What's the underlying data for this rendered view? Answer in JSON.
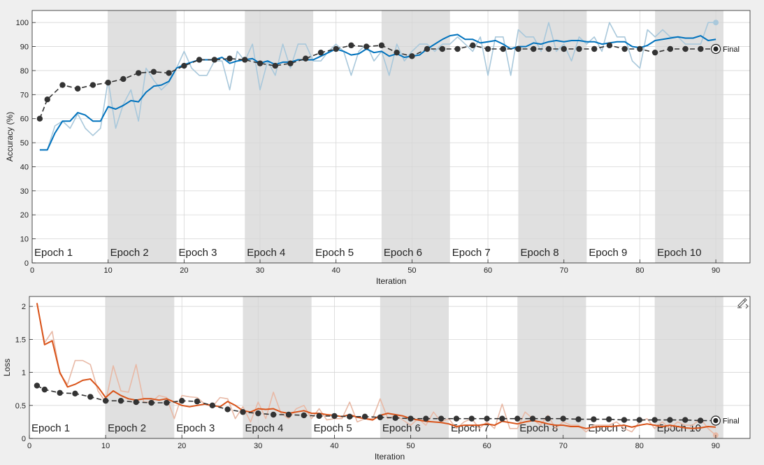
{
  "chart_data": [
    {
      "type": "line",
      "panel": "accuracy",
      "xlabel": "Iteration",
      "ylabel": "Accuracy (%)",
      "xlim": [
        0,
        94.5
      ],
      "ylim": [
        0,
        105
      ],
      "xticks": [
        0,
        10,
        20,
        30,
        40,
        50,
        60,
        70,
        80,
        90
      ],
      "yticks": [
        0,
        10,
        20,
        30,
        40,
        50,
        60,
        70,
        80,
        90,
        100
      ],
      "grid": true,
      "epoch_labels": [
        "Epoch 1",
        "Epoch 2",
        "Epoch 3",
        "Epoch 4",
        "Epoch 5",
        "Epoch 6",
        "Epoch 7",
        "Epoch 8",
        "Epoch 9",
        "Epoch 10"
      ],
      "epoch_boundaries": [
        0,
        10,
        19,
        28,
        37,
        46,
        55,
        64,
        73,
        82,
        91
      ],
      "series": [
        {
          "role": "raw",
          "color": "#a9c8db",
          "x": [
            1,
            2,
            3,
            4,
            5,
            6,
            7,
            8,
            9,
            10,
            11,
            12,
            13,
            14,
            15,
            16,
            17,
            18,
            19,
            20,
            21,
            22,
            23,
            24,
            25,
            26,
            27,
            28,
            29,
            30,
            31,
            32,
            33,
            34,
            35,
            36,
            37,
            38,
            39,
            40,
            41,
            42,
            43,
            44,
            45,
            46,
            47,
            48,
            49,
            50,
            51,
            52,
            53,
            54,
            55,
            56,
            57,
            58,
            59,
            60,
            61,
            62,
            63,
            64,
            65,
            66,
            67,
            68,
            69,
            70,
            71,
            72,
            73,
            74,
            75,
            76,
            77,
            78,
            79,
            80,
            81,
            82,
            83,
            84,
            85,
            86,
            87,
            88,
            89,
            90
          ],
          "y": [
            47,
            47,
            57,
            59,
            56,
            62,
            56,
            53,
            56,
            76,
            56,
            66,
            72,
            59,
            81,
            76,
            72,
            75,
            81,
            88,
            81,
            78,
            78,
            84,
            84,
            72,
            88,
            84,
            91,
            72,
            84,
            78,
            91,
            81,
            91,
            91,
            84,
            84,
            88,
            91,
            88,
            78,
            88,
            91,
            84,
            88,
            78,
            91,
            84,
            88,
            91,
            91,
            88,
            91,
            91,
            94,
            91,
            88,
            94,
            78,
            94,
            94,
            78,
            97,
            94,
            94,
            88,
            100,
            88,
            91,
            84,
            94,
            91,
            94,
            88,
            100,
            94,
            94,
            84,
            81,
            97,
            94,
            97,
            94,
            94,
            91,
            91,
            91,
            100,
            100
          ]
        },
        {
          "role": "smoothed",
          "color": "#0072bd",
          "x": [
            1,
            2,
            3,
            4,
            5,
            6,
            7,
            8,
            9,
            10,
            11,
            12,
            13,
            14,
            15,
            16,
            17,
            18,
            19,
            20,
            21,
            22,
            23,
            24,
            25,
            26,
            27,
            28,
            29,
            30,
            31,
            32,
            33,
            34,
            35,
            36,
            37,
            38,
            39,
            40,
            41,
            42,
            43,
            44,
            45,
            46,
            47,
            48,
            49,
            50,
            51,
            52,
            53,
            54,
            55,
            56,
            57,
            58,
            59,
            60,
            61,
            62,
            63,
            64,
            65,
            66,
            67,
            68,
            69,
            70,
            71,
            72,
            73,
            74,
            75,
            76,
            77,
            78,
            79,
            80,
            81,
            82,
            83,
            84,
            85,
            86,
            87,
            88,
            89,
            90
          ],
          "y": [
            47,
            47,
            54,
            59,
            59,
            62.5,
            61.5,
            59,
            59,
            65,
            64,
            65.5,
            67.5,
            67,
            71,
            73.5,
            74,
            75.5,
            81,
            82.5,
            83.5,
            84.5,
            84.5,
            84.5,
            85.5,
            83,
            84,
            84.5,
            85,
            83,
            84,
            82.5,
            83.5,
            83.5,
            84.5,
            84.5,
            84.5,
            86,
            87.5,
            89,
            88,
            86.5,
            87,
            89,
            87.5,
            88,
            86,
            87,
            85.5,
            86,
            86.5,
            89,
            91,
            93,
            94.5,
            95,
            93,
            93,
            91.5,
            92,
            92.5,
            91,
            89,
            90,
            90,
            91.5,
            91,
            92,
            92.5,
            92,
            92.5,
            92.5,
            92,
            92,
            91,
            91.5,
            92,
            92,
            90,
            89.5,
            90.5,
            92.5,
            93,
            93.5,
            94,
            93.5,
            93.5,
            94.5,
            92.5,
            93
          ]
        },
        {
          "role": "validation",
          "color": "#333333",
          "x": [
            1,
            2,
            4,
            6,
            8,
            10,
            12,
            14,
            16,
            18,
            20,
            22,
            24,
            26,
            28,
            30,
            32,
            34,
            36,
            38,
            40,
            42,
            44,
            46,
            48,
            50,
            52,
            54,
            56,
            58,
            60,
            62,
            64,
            66,
            68,
            70,
            72,
            74,
            76,
            78,
            80,
            82,
            84,
            86,
            88,
            90
          ],
          "y": [
            60,
            68,
            74,
            72.5,
            74,
            75,
            76.5,
            79,
            79.5,
            79,
            82,
            84.5,
            84.5,
            85,
            84.5,
            83,
            82,
            83,
            85,
            87.5,
            89,
            90.5,
            90,
            90.5,
            87.5,
            86,
            89,
            89,
            89,
            90.5,
            89,
            89,
            89,
            89,
            89,
            89,
            89,
            89,
            90.5,
            89,
            89,
            87.5,
            89,
            89,
            89,
            89
          ]
        }
      ],
      "final_label": "Final",
      "final_value": 89,
      "final_raw_value": 100
    },
    {
      "type": "line",
      "panel": "loss",
      "xlabel": "Iteration",
      "ylabel": "Loss",
      "xlim": [
        0,
        94.5
      ],
      "ylim": [
        0,
        2.15
      ],
      "xticks": [
        0,
        10,
        20,
        30,
        40,
        50,
        60,
        70,
        80,
        90
      ],
      "yticks": [
        0,
        0.5,
        1,
        1.5,
        2
      ],
      "ytick_labels": [
        "0",
        "0.5",
        "1",
        "1.5",
        "2"
      ],
      "grid": true,
      "epoch_labels": [
        "Epoch 1",
        "Epoch 2",
        "Epoch 3",
        "Epoch 4",
        "Epoch 5",
        "Epoch 6",
        "Epoch 7",
        "Epoch 8",
        "Epoch 9",
        "Epoch 10"
      ],
      "epoch_boundaries": [
        0,
        10,
        19,
        28,
        37,
        46,
        55,
        64,
        73,
        82,
        91
      ],
      "series": [
        {
          "role": "raw",
          "color": "#e8b9a6",
          "x": [
            1,
            2,
            3,
            4,
            5,
            6,
            7,
            8,
            9,
            10,
            11,
            12,
            13,
            14,
            15,
            16,
            17,
            18,
            19,
            20,
            21,
            22,
            23,
            24,
            25,
            26,
            27,
            28,
            29,
            30,
            31,
            32,
            33,
            34,
            35,
            36,
            37,
            38,
            39,
            40,
            41,
            42,
            43,
            44,
            45,
            46,
            47,
            48,
            49,
            50,
            51,
            52,
            53,
            54,
            55,
            56,
            57,
            58,
            59,
            60,
            61,
            62,
            63,
            64,
            65,
            66,
            67,
            68,
            69,
            70,
            71,
            72,
            73,
            74,
            75,
            76,
            77,
            78,
            79,
            80,
            81,
            82,
            83,
            84,
            85,
            86,
            87,
            88,
            89,
            90
          ],
          "y": [
            2.05,
            1.45,
            1.62,
            0.98,
            0.82,
            1.18,
            1.18,
            1.12,
            0.72,
            0.55,
            1.1,
            0.72,
            0.7,
            1.12,
            0.55,
            0.55,
            0.65,
            0.62,
            0.3,
            0.65,
            0.63,
            0.62,
            0.52,
            0.48,
            0.62,
            0.6,
            0.3,
            0.48,
            0.25,
            0.55,
            0.3,
            0.7,
            0.38,
            0.3,
            0.45,
            0.5,
            0.3,
            0.45,
            0.28,
            0.3,
            0.3,
            0.55,
            0.25,
            0.3,
            0.3,
            0.6,
            0.3,
            0.35,
            0.28,
            0.2,
            0.3,
            0.2,
            0.4,
            0.25,
            0.3,
            0.15,
            0.25,
            0.3,
            0.15,
            0.25,
            0.15,
            0.52,
            0.15,
            0.15,
            0.4,
            0.3,
            0.2,
            0.35,
            0.15,
            0.25,
            0.2,
            0.2,
            0.1,
            0.2,
            0.2,
            0.2,
            0.25,
            0.15,
            0.1,
            0.25,
            0.3,
            0.15,
            0.25,
            0.15,
            0.25,
            0.2,
            0.2,
            0.3,
            0.15,
            0.05
          ]
        },
        {
          "role": "smoothed",
          "color": "#d95319",
          "x": [
            1,
            2,
            3,
            4,
            5,
            6,
            7,
            8,
            9,
            10,
            11,
            12,
            13,
            14,
            15,
            16,
            17,
            18,
            19,
            20,
            21,
            22,
            23,
            24,
            25,
            26,
            27,
            28,
            29,
            30,
            31,
            32,
            33,
            34,
            35,
            36,
            37,
            38,
            39,
            40,
            41,
            42,
            43,
            44,
            45,
            46,
            47,
            48,
            49,
            50,
            51,
            52,
            53,
            54,
            55,
            56,
            57,
            58,
            59,
            60,
            61,
            62,
            63,
            64,
            65,
            66,
            67,
            68,
            69,
            70,
            71,
            72,
            73,
            74,
            75,
            76,
            77,
            78,
            79,
            80,
            81,
            82,
            83,
            84,
            85,
            86,
            87,
            88,
            89,
            90
          ],
          "y": [
            2.05,
            1.42,
            1.48,
            1.0,
            0.78,
            0.82,
            0.88,
            0.9,
            0.78,
            0.62,
            0.72,
            0.65,
            0.6,
            0.58,
            0.6,
            0.6,
            0.58,
            0.6,
            0.55,
            0.5,
            0.48,
            0.5,
            0.52,
            0.5,
            0.48,
            0.56,
            0.5,
            0.42,
            0.4,
            0.45,
            0.44,
            0.45,
            0.4,
            0.38,
            0.4,
            0.42,
            0.38,
            0.38,
            0.36,
            0.35,
            0.33,
            0.36,
            0.32,
            0.3,
            0.28,
            0.35,
            0.38,
            0.36,
            0.34,
            0.3,
            0.28,
            0.26,
            0.25,
            0.24,
            0.22,
            0.18,
            0.2,
            0.2,
            0.2,
            0.22,
            0.2,
            0.26,
            0.24,
            0.22,
            0.25,
            0.27,
            0.25,
            0.22,
            0.2,
            0.2,
            0.18,
            0.18,
            0.15,
            0.17,
            0.18,
            0.18,
            0.19,
            0.2,
            0.17,
            0.2,
            0.22,
            0.2,
            0.18,
            0.2,
            0.18,
            0.16,
            0.15,
            0.16,
            0.18,
            0.17
          ]
        },
        {
          "role": "validation",
          "color": "#333333",
          "x": [
            1,
            2,
            4,
            6,
            8,
            10,
            12,
            14,
            16,
            18,
            20,
            22,
            24,
            26,
            28,
            30,
            32,
            34,
            36,
            38,
            40,
            42,
            44,
            46,
            48,
            50,
            52,
            54,
            56,
            58,
            60,
            62,
            64,
            66,
            68,
            70,
            72,
            74,
            76,
            78,
            80,
            82,
            84,
            86,
            88,
            90
          ],
          "y": [
            0.8,
            0.74,
            0.69,
            0.68,
            0.63,
            0.57,
            0.57,
            0.55,
            0.54,
            0.54,
            0.57,
            0.56,
            0.5,
            0.44,
            0.4,
            0.38,
            0.36,
            0.36,
            0.35,
            0.34,
            0.34,
            0.33,
            0.33,
            0.32,
            0.31,
            0.3,
            0.3,
            0.3,
            0.3,
            0.3,
            0.3,
            0.3,
            0.3,
            0.3,
            0.3,
            0.3,
            0.29,
            0.29,
            0.29,
            0.28,
            0.28,
            0.28,
            0.28,
            0.28,
            0.27,
            0.27
          ]
        }
      ],
      "final_label": "Final",
      "final_value": 0.27,
      "final_raw_value": 0.05
    }
  ],
  "toolbar": {
    "export_icon": "brush-export-icon"
  }
}
